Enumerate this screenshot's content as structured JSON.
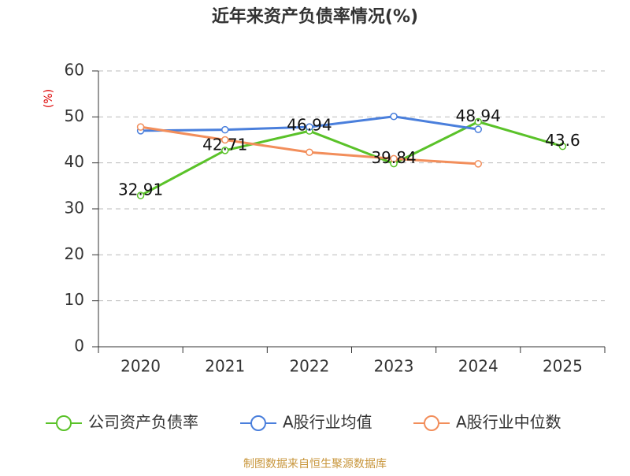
{
  "chart_data": {
    "type": "line",
    "title": "近年来资产负债率情况(%)",
    "y_label": "(%)",
    "categories": [
      "2020",
      "2021",
      "2022",
      "2023",
      "2024",
      "2025"
    ],
    "series": [
      {
        "name": "公司资产负债率",
        "color": "#5ac229",
        "values": [
          32.91,
          42.71,
          46.94,
          39.84,
          48.94,
          43.6
        ],
        "show_labels": true
      },
      {
        "name": "A股行业均值",
        "color": "#4a7fdc",
        "values": [
          47.0,
          47.2,
          47.8,
          50.1,
          47.3,
          null
        ]
      },
      {
        "name": "A股行业中位数",
        "color": "#f28e5b",
        "values": [
          47.8,
          45.0,
          42.3,
          40.9,
          39.8,
          null
        ]
      }
    ],
    "ylim": [
      0,
      60
    ],
    "yticks": [
      0,
      10,
      20,
      30,
      40,
      50,
      60
    ],
    "grid": true,
    "source": "制图数据来自恒生聚源数据库"
  }
}
